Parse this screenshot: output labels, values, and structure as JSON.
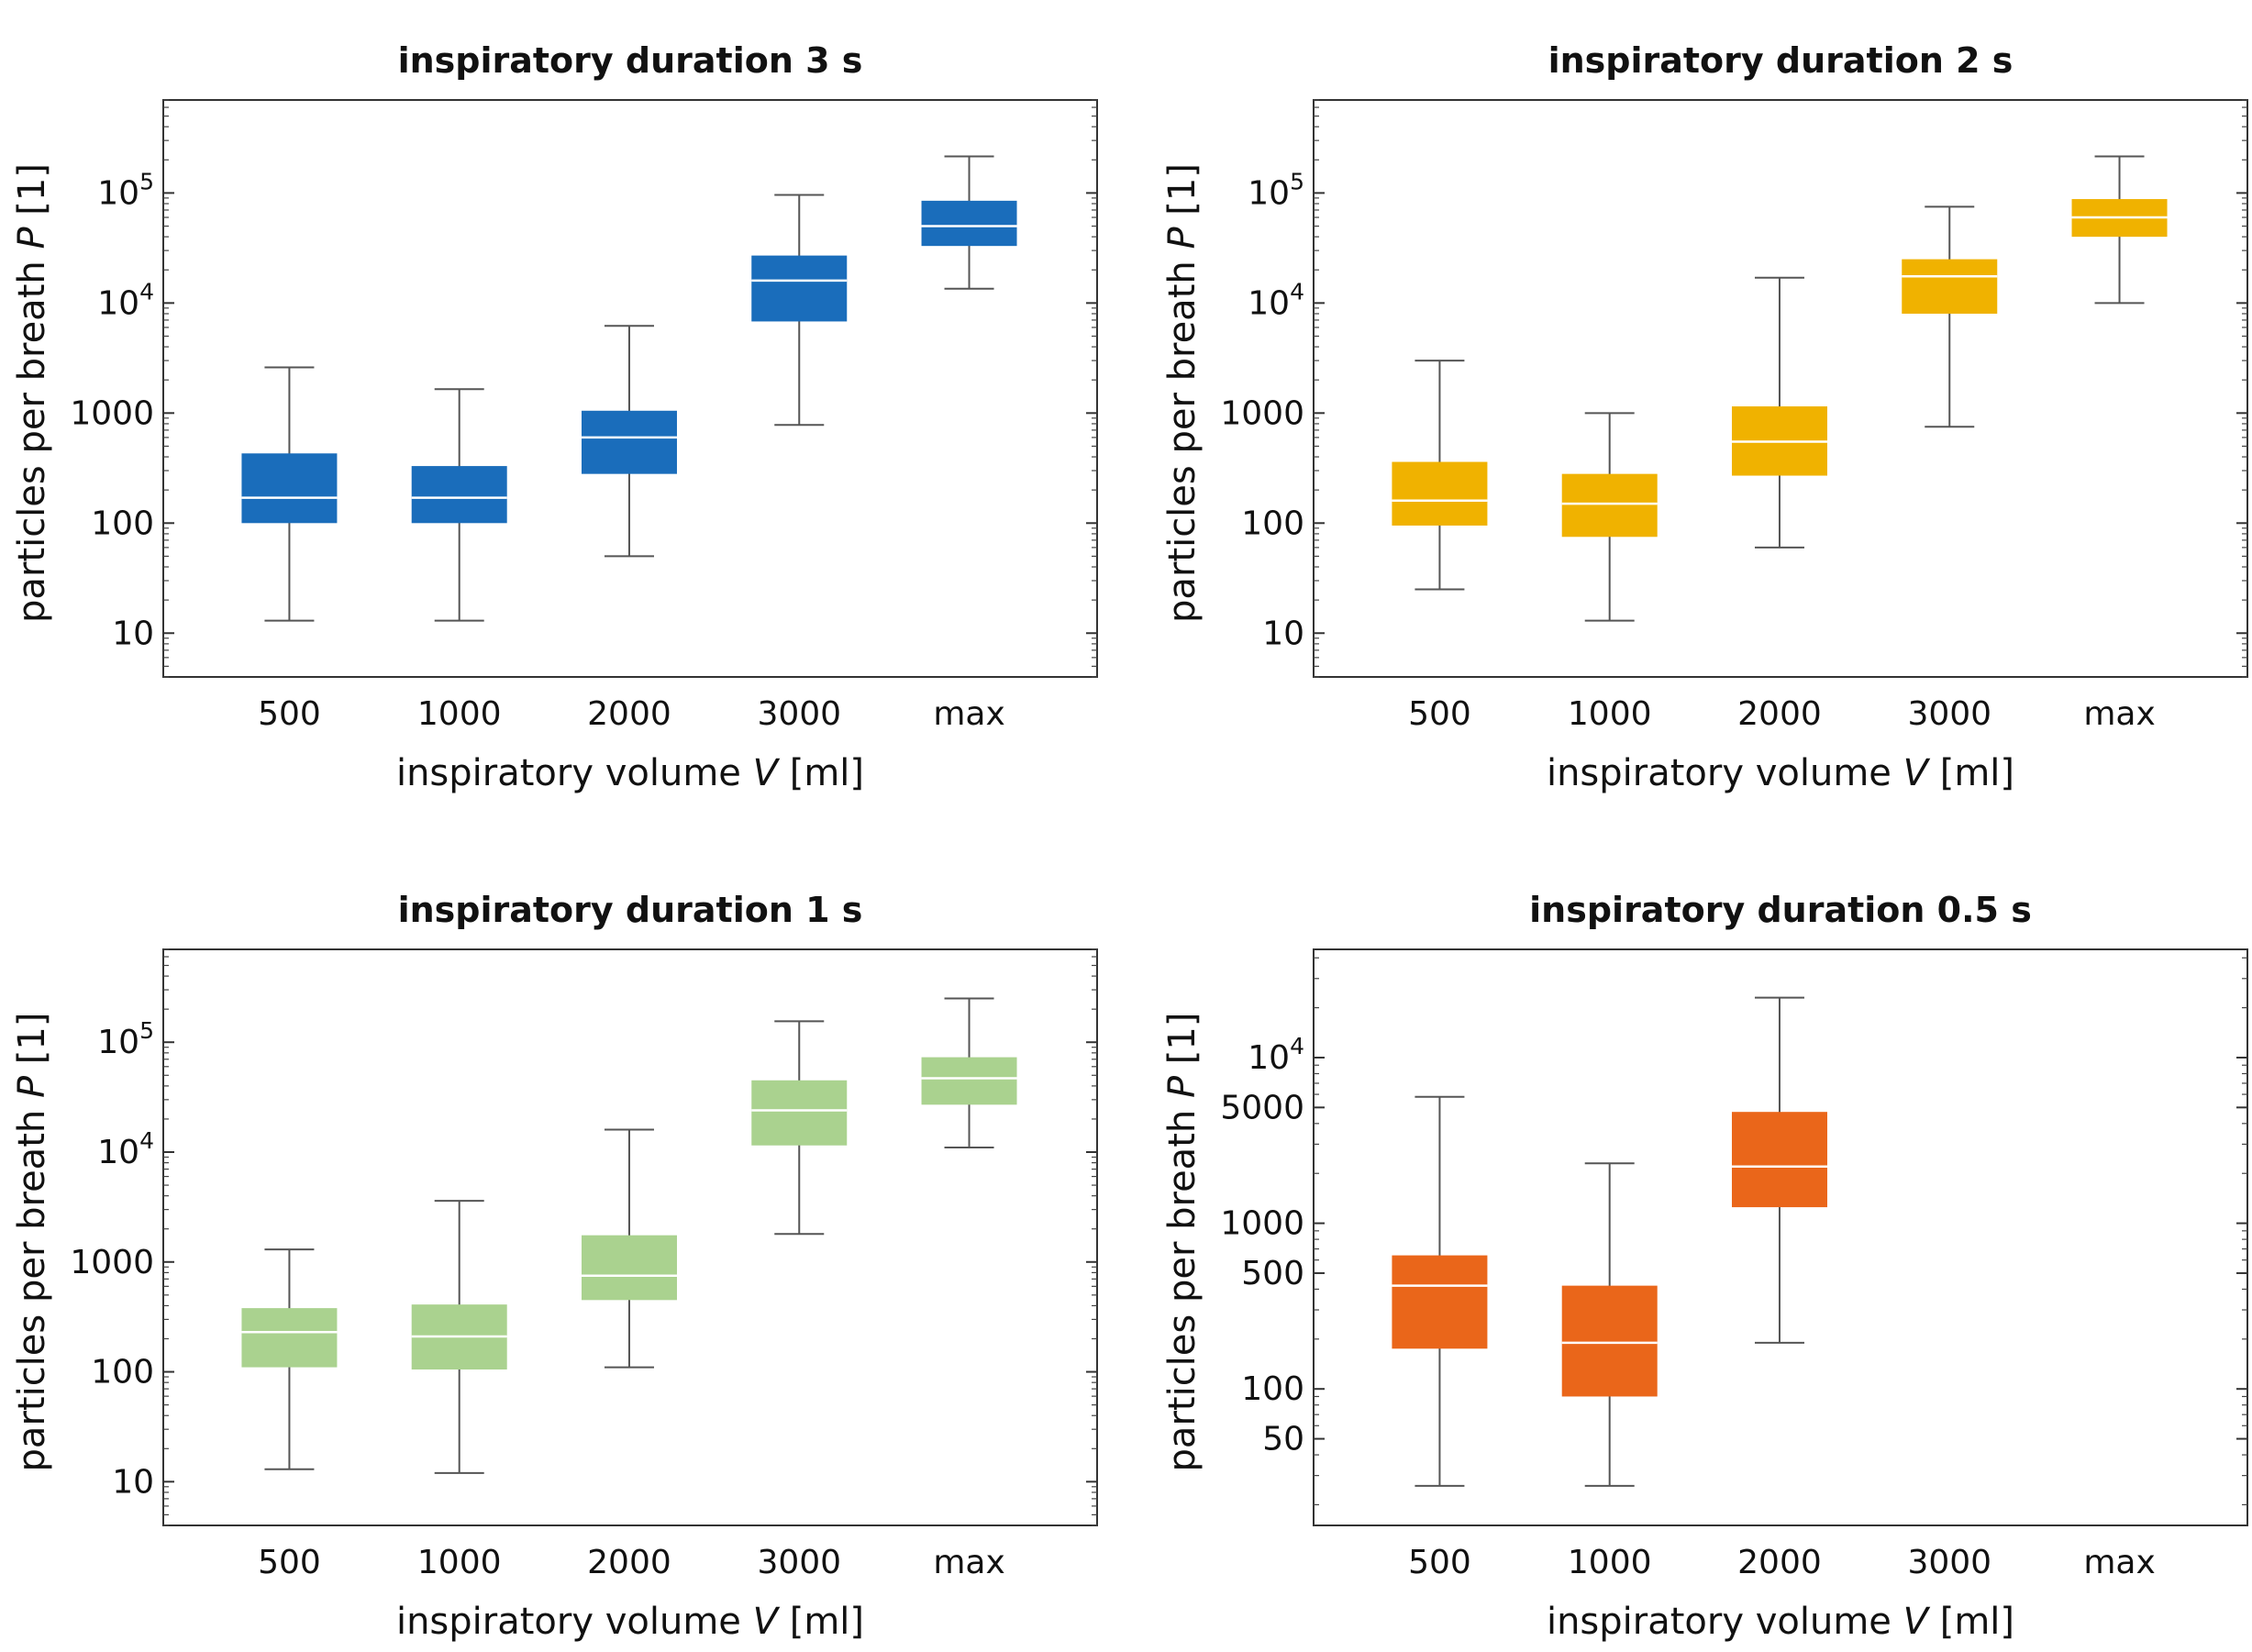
{
  "chart_data": [
    {
      "type": "box",
      "title": "inspiratory duration 3 s",
      "xlabel": "inspiratory volume V [ml]",
      "ylabel": "particles per breath P [1]",
      "yscale": "log",
      "ylim": [
        4,
        700000
      ],
      "yticks": [
        {
          "value": 10,
          "label": "10"
        },
        {
          "value": 100,
          "label": "100"
        },
        {
          "value": 1000,
          "label": "1000"
        },
        {
          "value": 10000,
          "label": "10",
          "exp": "4"
        },
        {
          "value": 100000,
          "label": "10",
          "exp": "5"
        }
      ],
      "categories": [
        "500",
        "1000",
        "2000",
        "3000",
        "max"
      ],
      "color": "#1a6dbb",
      "boxes": [
        {
          "whisker_low": 13,
          "q1": 100,
          "median": 170,
          "q3": 430,
          "whisker_high": 2600
        },
        {
          "whisker_low": 13,
          "q1": 100,
          "median": 170,
          "q3": 330,
          "whisker_high": 1650
        },
        {
          "whisker_low": 50,
          "q1": 280,
          "median": 600,
          "q3": 1050,
          "whisker_high": 6200
        },
        {
          "whisker_low": 780,
          "q1": 6800,
          "median": 16000,
          "q3": 27000,
          "whisker_high": 96000
        },
        {
          "whisker_low": 13500,
          "q1": 33000,
          "median": 50000,
          "q3": 85000,
          "whisker_high": 215000
        }
      ]
    },
    {
      "type": "box",
      "title": "inspiratory duration 2 s",
      "xlabel": "inspiratory volume V [ml]",
      "ylabel": "particles per breath P [1]",
      "yscale": "log",
      "ylim": [
        4,
        700000
      ],
      "yticks": [
        {
          "value": 10,
          "label": "10"
        },
        {
          "value": 100,
          "label": "100"
        },
        {
          "value": 1000,
          "label": "1000"
        },
        {
          "value": 10000,
          "label": "10",
          "exp": "4"
        },
        {
          "value": 100000,
          "label": "10",
          "exp": "5"
        }
      ],
      "categories": [
        "500",
        "1000",
        "2000",
        "3000",
        "max"
      ],
      "color": "#f0b200",
      "boxes": [
        {
          "whisker_low": 25,
          "q1": 95,
          "median": 160,
          "q3": 360,
          "whisker_high": 3000
        },
        {
          "whisker_low": 13,
          "q1": 75,
          "median": 150,
          "q3": 280,
          "whisker_high": 1000
        },
        {
          "whisker_low": 60,
          "q1": 270,
          "median": 550,
          "q3": 1150,
          "whisker_high": 17000
        },
        {
          "whisker_low": 750,
          "q1": 8000,
          "median": 17500,
          "q3": 25000,
          "whisker_high": 75000
        },
        {
          "whisker_low": 10000,
          "q1": 40000,
          "median": 60000,
          "q3": 88000,
          "whisker_high": 215000
        }
      ]
    },
    {
      "type": "box",
      "title": "inspiratory duration 1 s",
      "xlabel": "inspiratory volume V [ml]",
      "ylabel": "particles per breath P [1]",
      "yscale": "log",
      "ylim": [
        4,
        700000
      ],
      "yticks": [
        {
          "value": 10,
          "label": "10"
        },
        {
          "value": 100,
          "label": "100"
        },
        {
          "value": 1000,
          "label": "1000"
        },
        {
          "value": 10000,
          "label": "10",
          "exp": "4"
        },
        {
          "value": 100000,
          "label": "10",
          "exp": "5"
        }
      ],
      "categories": [
        "500",
        "1000",
        "2000",
        "3000",
        "max"
      ],
      "color": "#aad28f",
      "boxes": [
        {
          "whisker_low": 13,
          "q1": 110,
          "median": 230,
          "q3": 380,
          "whisker_high": 1300
        },
        {
          "whisker_low": 12,
          "q1": 105,
          "median": 210,
          "q3": 410,
          "whisker_high": 3600
        },
        {
          "whisker_low": 110,
          "q1": 450,
          "median": 750,
          "q3": 1750,
          "whisker_high": 16000
        },
        {
          "whisker_low": 1800,
          "q1": 11500,
          "median": 24000,
          "q3": 45000,
          "whisker_high": 155000
        },
        {
          "whisker_low": 11000,
          "q1": 27000,
          "median": 47000,
          "q3": 73000,
          "whisker_high": 250000
        }
      ]
    },
    {
      "type": "box",
      "title": "inspiratory duration 0.5 s",
      "xlabel": "inspiratory volume V [ml]",
      "ylabel": "particles per breath P [1]",
      "yscale": "log",
      "ylim": [
        15,
        45000
      ],
      "yticks": [
        {
          "value": 50,
          "label": "50"
        },
        {
          "value": 100,
          "label": "100"
        },
        {
          "value": 500,
          "label": "500"
        },
        {
          "value": 1000,
          "label": "1000"
        },
        {
          "value": 5000,
          "label": "5000"
        },
        {
          "value": 10000,
          "label": "10",
          "exp": "4"
        }
      ],
      "categories": [
        "500",
        "1000",
        "2000",
        "3000",
        "max"
      ],
      "color": "#ea661a",
      "boxes": [
        {
          "whisker_low": 26,
          "q1": 175,
          "median": 420,
          "q3": 640,
          "whisker_high": 5800
        },
        {
          "whisker_low": 26,
          "q1": 90,
          "median": 190,
          "q3": 420,
          "whisker_high": 2300
        },
        {
          "whisker_low": 190,
          "q1": 1250,
          "median": 2200,
          "q3": 4700,
          "whisker_high": 23000
        },
        null,
        null
      ]
    }
  ]
}
